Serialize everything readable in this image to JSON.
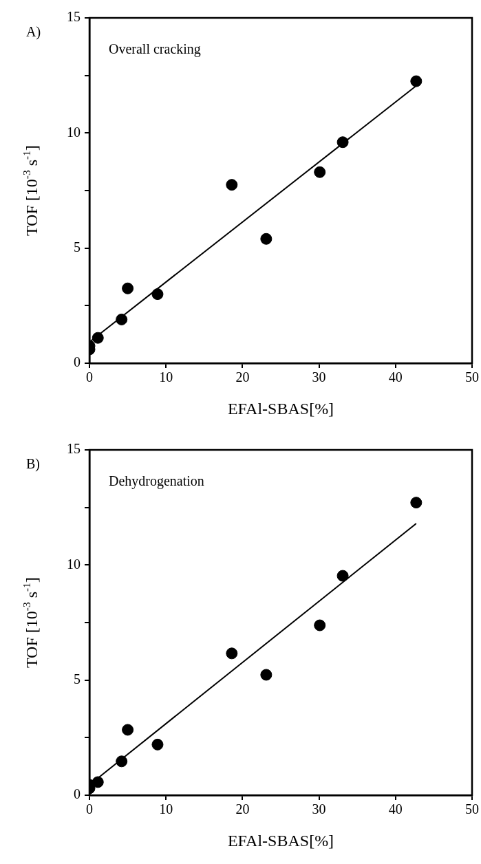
{
  "chart_data": [
    {
      "type": "scatter",
      "annotations": [
        "A)",
        "Overall cracking"
      ],
      "xlabel": "EFAl-SBAS[%]",
      "ylabel": "TOF [10$^{-3}$ s$^{-1}$]",
      "xlim": [
        0,
        50
      ],
      "xticks": [
        0,
        10,
        20,
        30,
        40,
        50
      ],
      "ylim": [
        0,
        15
      ],
      "yticks": [
        0,
        {
          "value": 2.5,
          "label": null
        },
        5,
        {
          "value": 7.5,
          "label": null
        },
        10,
        {
          "value": 12.5,
          "label": null
        },
        15
      ],
      "grid": false,
      "legend": false,
      "series": [
        {
          "type": "scatter",
          "marker": "circle",
          "color": "#000000",
          "x": [
            0,
            0,
            1.1,
            4.2,
            5,
            8.9,
            18.6,
            23.1,
            30.1,
            33.1,
            42.7
          ],
          "values": [
            0.6,
            0.75,
            1.1,
            1.9,
            3.25,
            3.0,
            7.75,
            5.4,
            8.3,
            9.6,
            12.25
          ]
        },
        {
          "type": "line",
          "marker": "none",
          "color": "#000000",
          "x": [
            0,
            42.7
          ],
          "values": [
            0.92,
            12.05
          ]
        }
      ]
    },
    {
      "type": "scatter",
      "annotations": [
        "B)",
        "Dehydrogenation"
      ],
      "xlabel": "EFAl-SBAS[%]",
      "ylabel": "TOF [10$^{-3}$ s$^{-1}$]",
      "xlim": [
        0,
        50
      ],
      "xticks": [
        0,
        10,
        20,
        30,
        40,
        50
      ],
      "ylim": [
        0,
        15
      ],
      "yticks": [
        0,
        {
          "value": 2.5,
          "label": null
        },
        5,
        {
          "value": 7.5,
          "label": null
        },
        10,
        {
          "value": 12.5,
          "label": null
        },
        15
      ],
      "grid": false,
      "legend": false,
      "series": [
        {
          "type": "scatter",
          "marker": "circle",
          "color": "#000000",
          "x": [
            0,
            0,
            1.1,
            4.2,
            5,
            8.9,
            18.6,
            23.1,
            30.1,
            33.1,
            42.7
          ],
          "values": [
            0.3,
            0.45,
            0.57,
            1.47,
            2.84,
            2.2,
            6.16,
            5.23,
            7.38,
            9.53,
            12.71
          ]
        },
        {
          "type": "line",
          "marker": "none",
          "color": "#000000",
          "x": [
            0,
            42.7
          ],
          "values": [
            0.45,
            11.8
          ]
        }
      ]
    }
  ]
}
